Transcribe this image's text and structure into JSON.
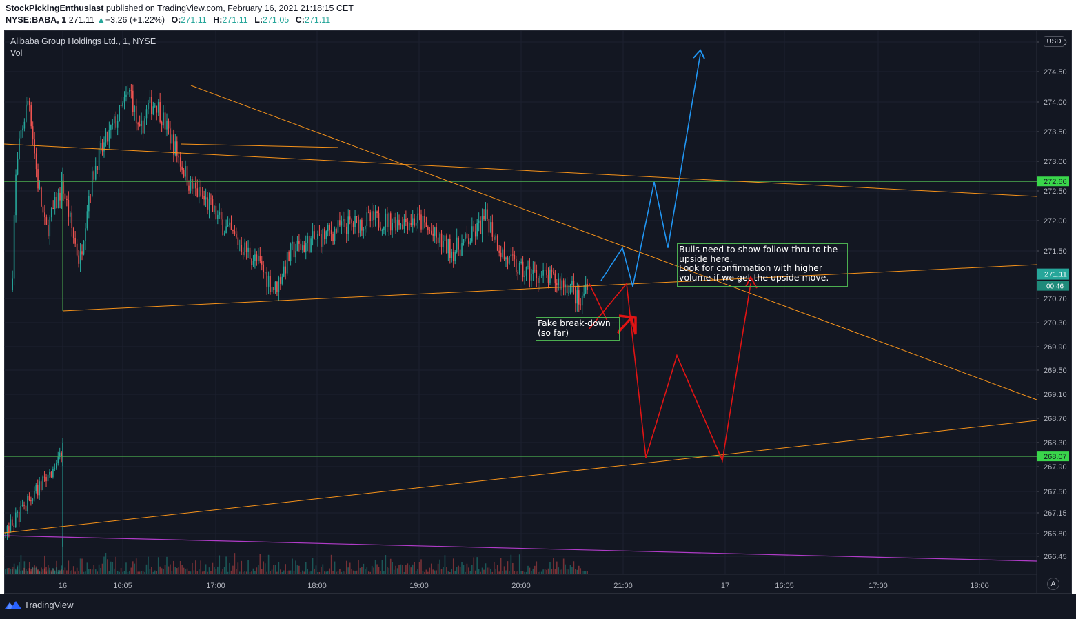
{
  "header": {
    "author": "StockPickingEnthusiast",
    "published_text": "published on TradingView.com, February 16, 2021 21:18:15 CET",
    "symbol": "NYSE:BABA, 1",
    "last": "271.11",
    "change_arrow": "▲",
    "change": "+3.26 (+1.22%)",
    "o_label": "O:",
    "o_value": "271.11",
    "h_label": "H:",
    "h_value": "271.11",
    "l_label": "L:",
    "l_value": "271.05",
    "c_label": "C:",
    "c_value": "271.11"
  },
  "legend": {
    "title": "Alibaba Group Holdings Ltd., 1, NYSE",
    "volume": "Vol"
  },
  "currency_badge": "USD",
  "auto_scale_button": "A",
  "footer": {
    "brand": "TradingView",
    "logo_icon": "tradingview-logo-icon"
  },
  "annotations": {
    "bulls": [
      "Bulls need to show follow-thru to the",
      "upside here.",
      "Look for confirmation with higher",
      "volume if we get the upside move."
    ],
    "fake": [
      "Fake break-down",
      "(so far)"
    ]
  },
  "colors": {
    "background": "#131722",
    "up": "#26a69a",
    "down": "#ef5350",
    "trendline": "#f7931a",
    "level": "#4caf50",
    "level_label_bg": "#3ad64b",
    "blue_path": "#2196f3",
    "red_path": "#e01414",
    "purple_line": "#b03cc8"
  },
  "chart_data": {
    "type": "candlestick",
    "symbol": "NYSE:BABA",
    "interval": "1",
    "last_price": 271.11,
    "countdown": "00:46",
    "ylim": [
      266.15,
      275.15
    ],
    "y_ticks": [
      "266.45",
      "266.80",
      "267.15",
      "267.50",
      "267.90",
      "268.30",
      "268.70",
      "269.10",
      "269.50",
      "269.90",
      "270.30",
      "270.70",
      "271.50",
      "272.00",
      "272.50",
      "273.00",
      "273.50",
      "274.00",
      "274.50",
      "275.00"
    ],
    "x_ticks": [
      "16",
      "16:05",
      "17:00",
      "18:00",
      "19:00",
      "20:00",
      "21:00",
      "17",
      "16:05",
      "17:00",
      "18:00"
    ],
    "horizontal_levels": [
      272.66,
      268.07
    ],
    "price_path_hhmm": [
      [
        "15:30",
        270.85
      ],
      [
        "15:32",
        272.6
      ],
      [
        "15:35",
        273.4
      ],
      [
        "15:40",
        274.1
      ],
      [
        "15:45",
        272.7
      ],
      [
        "15:50",
        271.8
      ],
      [
        "16:00",
        272.6
      ],
      [
        "16:05",
        271.9
      ],
      [
        "16:10",
        271.3
      ],
      [
        "16:15",
        272.4
      ],
      [
        "16:20",
        273.0
      ],
      [
        "16:30",
        273.6
      ],
      [
        "16:40",
        274.2
      ],
      [
        "16:45",
        273.4
      ],
      [
        "16:50",
        273.9
      ],
      [
        "16:55",
        274.0
      ],
      [
        "17:05",
        273.3
      ],
      [
        "17:15",
        272.6
      ],
      [
        "17:25",
        272.3
      ],
      [
        "17:35",
        271.9
      ],
      [
        "17:45",
        271.6
      ],
      [
        "17:55",
        271.3
      ],
      [
        "18:05",
        270.85
      ],
      [
        "18:15",
        271.5
      ],
      [
        "18:30",
        271.7
      ],
      [
        "18:45",
        271.9
      ],
      [
        "19:00",
        272.0
      ],
      [
        "19:15",
        272.0
      ],
      [
        "19:30",
        272.0
      ],
      [
        "19:40",
        271.7
      ],
      [
        "19:50",
        271.5
      ],
      [
        "20:00",
        271.7
      ],
      [
        "20:10",
        272.05
      ],
      [
        "20:20",
        271.4
      ],
      [
        "20:30",
        271.15
      ],
      [
        "20:40",
        271.1
      ],
      [
        "20:50",
        271.0
      ],
      [
        "21:00",
        270.9
      ],
      [
        "21:05",
        270.55
      ],
      [
        "21:10",
        271.11
      ]
    ],
    "prior_session_path": [
      [
        266.8,
        0
      ],
      [
        267.35,
        0.4
      ],
      [
        267.7,
        0.7
      ],
      [
        268.1,
        1.0
      ]
    ],
    "annotation_paths": {
      "blue_projection": [
        271.0,
        271.55,
        270.9,
        272.65,
        271.55,
        274.8
      ],
      "red_projection": [
        270.2,
        270.95,
        268.05,
        269.75,
        268.0,
        270.95
      ]
    }
  }
}
